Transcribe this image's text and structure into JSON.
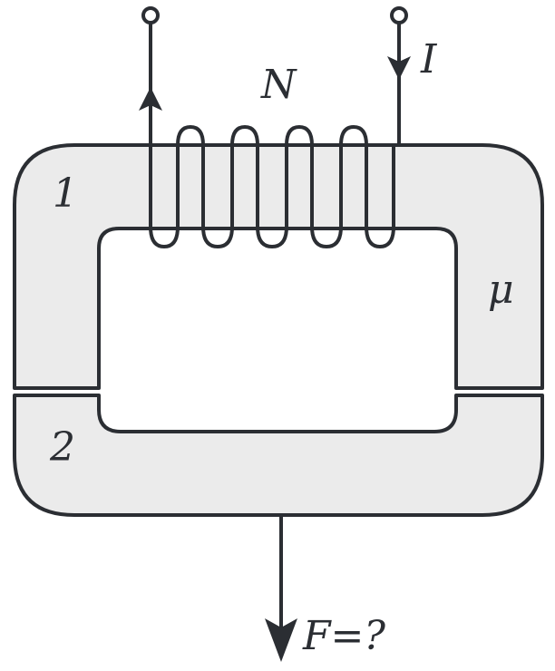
{
  "labels": {
    "turns": "N",
    "current": "I",
    "part_1": "1",
    "part_2": "2",
    "permeability": "μ",
    "force": "F=?"
  },
  "colors": {
    "ink": "#2b2e33",
    "core_fill": "#ebebeb",
    "background": "#ffffff"
  }
}
